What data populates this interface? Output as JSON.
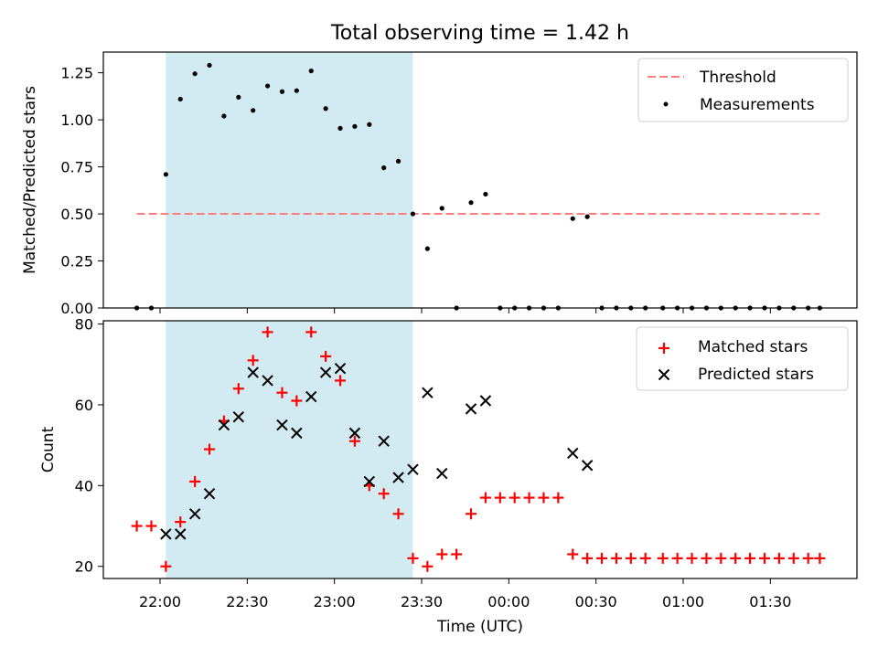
{
  "title": "Total observing time = 1.42 h",
  "colors": {
    "threshold": "#ff7f7f",
    "measurements": "#000000",
    "matched": "#ff0000",
    "predicted": "#000000",
    "shade": "#add8e6"
  },
  "chart_data": [
    {
      "type": "scatter",
      "ylabel": "Matched/Predicted stars",
      "ylim": [
        0,
        1.36
      ],
      "yticks": [
        0.0,
        0.25,
        0.5,
        0.75,
        1.0,
        1.25
      ],
      "ytick_labels": [
        "0.00",
        "0.25",
        "0.50",
        "0.75",
        "1.00",
        "1.25"
      ],
      "shaded_interval": [
        "22:02",
        "23:27"
      ],
      "legend": {
        "position": "upper right",
        "entries": [
          "Threshold",
          "Measurements"
        ]
      },
      "threshold": {
        "name": "Threshold",
        "y": 0.5,
        "x_start": "21:52",
        "x_end": "01:47"
      },
      "measurements": {
        "name": "Measurements",
        "x": [
          "21:52",
          "21:57",
          "22:02",
          "22:07",
          "22:12",
          "22:17",
          "22:22",
          "22:27",
          "22:32",
          "22:37",
          "22:42",
          "22:47",
          "22:52",
          "22:57",
          "23:02",
          "23:07",
          "23:12",
          "23:17",
          "23:22",
          "23:27",
          "23:32",
          "23:37",
          "23:42",
          "23:47",
          "23:52",
          "23:57",
          "00:02",
          "00:07",
          "00:12",
          "00:17",
          "00:22",
          "00:27",
          "00:32",
          "00:37",
          "00:42",
          "00:47",
          "00:53",
          "00:58",
          "01:03",
          "01:08",
          "01:13",
          "01:18",
          "01:23",
          "01:28",
          "01:33",
          "01:38",
          "01:43",
          "01:47"
        ],
        "y": [
          0,
          0,
          0.71,
          1.11,
          1.245,
          1.29,
          1.02,
          1.12,
          1.05,
          1.18,
          1.15,
          1.155,
          1.26,
          1.06,
          0.955,
          0.965,
          0.975,
          0.745,
          0.78,
          0.5,
          0.315,
          0.53,
          0,
          0.56,
          0.605,
          0,
          0,
          0,
          0,
          0,
          0.475,
          0.485,
          0,
          0,
          0,
          0,
          0,
          0,
          0,
          0,
          0,
          0,
          0,
          0,
          0,
          0,
          0,
          0
        ]
      }
    },
    {
      "type": "scatter",
      "xlabel": "Time (UTC)",
      "ylabel": "Count",
      "ylim": [
        17,
        80.8
      ],
      "yticks": [
        20,
        40,
        60,
        80
      ],
      "xticks": [
        "22:00",
        "22:30",
        "23:00",
        "23:30",
        "00:00",
        "00:30",
        "01:00",
        "01:30"
      ],
      "shaded_interval": [
        "22:02",
        "23:27"
      ],
      "legend": {
        "position": "upper right",
        "entries": [
          "Matched stars",
          "Predicted stars"
        ]
      },
      "series": [
        {
          "name": "Matched stars",
          "x": [
            "21:52",
            "21:57",
            "22:02",
            "22:07",
            "22:12",
            "22:17",
            "22:22",
            "22:27",
            "22:32",
            "22:37",
            "22:42",
            "22:47",
            "22:52",
            "22:57",
            "23:02",
            "23:07",
            "23:12",
            "23:17",
            "23:22",
            "23:27",
            "23:32",
            "23:37",
            "23:42",
            "23:47",
            "23:52",
            "23:57",
            "00:02",
            "00:07",
            "00:12",
            "00:17",
            "00:22",
            "00:27",
            "00:32",
            "00:37",
            "00:42",
            "00:47",
            "00:53",
            "00:58",
            "01:03",
            "01:08",
            "01:13",
            "01:18",
            "01:23",
            "01:28",
            "01:33",
            "01:38",
            "01:43",
            "01:47"
          ],
          "y": [
            30,
            30,
            20,
            31,
            41,
            49,
            56,
            64,
            71,
            78,
            63,
            61,
            78,
            72,
            66,
            51,
            40,
            38,
            33,
            22,
            20,
            23,
            23,
            33,
            37,
            37,
            37,
            37,
            37,
            37,
            23,
            22,
            22,
            22,
            22,
            22,
            22,
            22,
            22,
            22,
            22,
            22,
            22,
            22,
            22,
            22,
            22,
            22
          ]
        },
        {
          "name": "Predicted stars",
          "x": [
            "22:02",
            "22:07",
            "22:12",
            "22:17",
            "22:22",
            "22:27",
            "22:32",
            "22:37",
            "22:42",
            "22:47",
            "22:52",
            "22:57",
            "23:02",
            "23:07",
            "23:12",
            "23:17",
            "23:22",
            "23:27",
            "23:32",
            "23:37",
            "23:47",
            "23:52",
            "00:22",
            "00:27"
          ],
          "y": [
            28,
            28,
            33,
            38,
            55,
            57,
            68,
            66,
            55,
            53,
            62,
            68,
            69,
            53,
            41,
            51,
            42,
            44,
            63,
            43,
            59,
            61,
            48,
            45
          ]
        }
      ]
    }
  ]
}
